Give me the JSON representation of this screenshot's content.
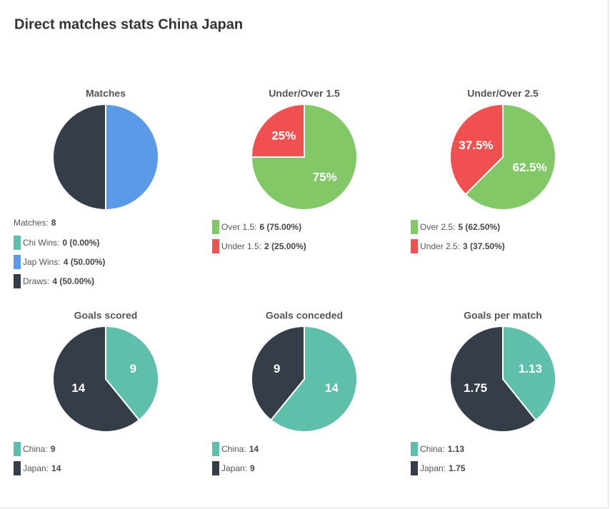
{
  "header": {
    "title": "Direct matches stats China Japan"
  },
  "chart_data": [
    {
      "type": "pie",
      "title": "Matches",
      "total_label": "Matches:",
      "total": 8,
      "categories": [
        "Chi Wins:",
        "Jap Wins:",
        "Draws:"
      ],
      "values": [
        0,
        4,
        4
      ],
      "legend_values": [
        "0 (0.00%)",
        "4 (50.00%)",
        "4 (50.00%)"
      ],
      "colors": [
        "#5ebfaa",
        "#5b9ae8",
        "#343d48"
      ],
      "show_labels": false
    },
    {
      "type": "pie",
      "title": "Under/Over 1.5",
      "categories": [
        "Over 1.5:",
        "Under 1.5:"
      ],
      "values": [
        75,
        25
      ],
      "value_labels": [
        "75%",
        "25%"
      ],
      "legend_values": [
        "6 (75.00%)",
        "2 (25.00%)"
      ],
      "colors": [
        "#82c867",
        "#f05050"
      ],
      "show_labels": true
    },
    {
      "type": "pie",
      "title": "Under/Over 2.5",
      "categories": [
        "Over 2.5:",
        "Under 2.5:"
      ],
      "values": [
        62.5,
        37.5
      ],
      "value_labels": [
        "62.5%",
        "37.5%"
      ],
      "legend_values": [
        "5 (62.50%)",
        "3 (37.50%)"
      ],
      "colors": [
        "#82c867",
        "#f05050"
      ],
      "show_labels": true
    },
    {
      "type": "pie",
      "title": "Goals scored",
      "categories": [
        "China:",
        "Japan:"
      ],
      "values": [
        9,
        14
      ],
      "colors": [
        "#5ebfaa",
        "#343d48"
      ],
      "show_labels": true
    },
    {
      "type": "pie",
      "title": "Goals conceded",
      "categories": [
        "China:",
        "Japan:"
      ],
      "values": [
        14,
        9
      ],
      "colors": [
        "#5ebfaa",
        "#343d48"
      ],
      "show_labels": true
    },
    {
      "type": "pie",
      "title": "Goals per match",
      "categories": [
        "China:",
        "Japan:"
      ],
      "values": [
        1.13,
        1.75
      ],
      "colors": [
        "#5ebfaa",
        "#343d48"
      ],
      "show_labels": true
    }
  ]
}
